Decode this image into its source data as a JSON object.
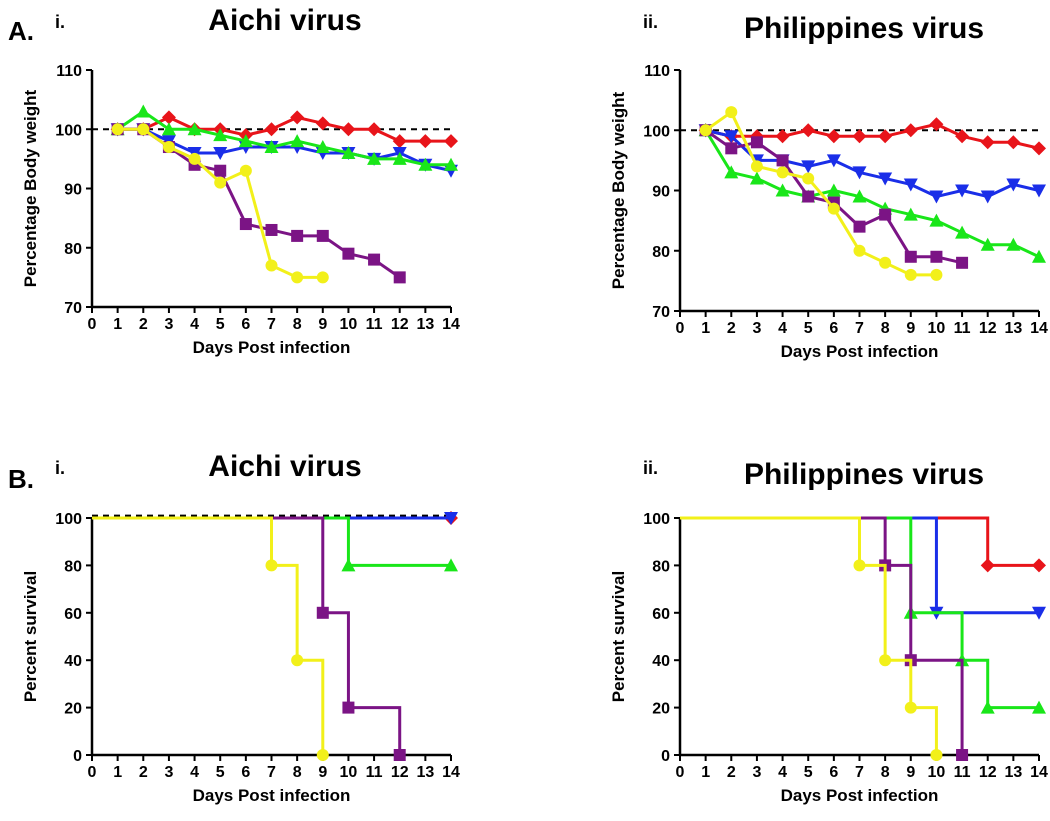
{
  "figure": {
    "panel_a_letter": "A.",
    "panel_b_letter": "B."
  },
  "chart_data": [
    {
      "type": "line",
      "sublabel": "i.",
      "title": "Aichi virus",
      "xlabel": "Days Post infection",
      "ylabel": "Percentage Body weight",
      "xlim": [
        0,
        14
      ],
      "ylim": [
        70,
        110
      ],
      "xticks": [
        0,
        1,
        2,
        3,
        4,
        5,
        6,
        7,
        8,
        9,
        10,
        11,
        12,
        13,
        14
      ],
      "yticks": [
        70,
        80,
        90,
        100,
        110
      ],
      "reference_line": 100,
      "series": [
        {
          "name": "red",
          "color": "#e8141a",
          "marker": "diamond",
          "x": [
            1,
            2,
            3,
            4,
            5,
            6,
            7,
            8,
            9,
            10,
            11,
            12,
            13,
            14
          ],
          "y": [
            100,
            100,
            102,
            100,
            100,
            99,
            100,
            102,
            101,
            100,
            100,
            98,
            98,
            98
          ]
        },
        {
          "name": "blue",
          "color": "#1a2ee8",
          "marker": "triangle-down",
          "x": [
            1,
            2,
            3,
            4,
            5,
            6,
            7,
            8,
            9,
            10,
            11,
            12,
            13,
            14
          ],
          "y": [
            100,
            100,
            98,
            96,
            96,
            97,
            97,
            97,
            96,
            96,
            95,
            96,
            94,
            93
          ]
        },
        {
          "name": "green",
          "color": "#19e619",
          "marker": "triangle-up",
          "x": [
            1,
            2,
            3,
            4,
            5,
            6,
            7,
            8,
            9,
            10,
            11,
            12,
            13,
            14
          ],
          "y": [
            100,
            103,
            100,
            100,
            99,
            98,
            97,
            98,
            97,
            96,
            95,
            95,
            94,
            94
          ]
        },
        {
          "name": "purple",
          "color": "#7b1485",
          "marker": "square",
          "x": [
            1,
            2,
            3,
            4,
            5,
            6,
            7,
            8,
            9,
            10,
            11,
            12
          ],
          "y": [
            100,
            100,
            97,
            94,
            93,
            84,
            83,
            82,
            82,
            79,
            78,
            75
          ]
        },
        {
          "name": "yellow",
          "color": "#f2f01a",
          "marker": "circle",
          "x": [
            1,
            2,
            3,
            4,
            5,
            6,
            7,
            8,
            9
          ],
          "y": [
            100,
            100,
            97,
            95,
            91,
            93,
            77,
            75,
            75
          ]
        }
      ]
    },
    {
      "type": "line",
      "sublabel": "ii.",
      "title": "Philippines virus",
      "xlabel": "Days Post infection",
      "ylabel": "Percentage Body weight",
      "xlim": [
        0,
        14
      ],
      "ylim": [
        70,
        110
      ],
      "xticks": [
        0,
        1,
        2,
        3,
        4,
        5,
        6,
        7,
        8,
        9,
        10,
        11,
        12,
        13,
        14
      ],
      "yticks": [
        70,
        80,
        90,
        100,
        110
      ],
      "reference_line": 100,
      "series": [
        {
          "name": "red",
          "color": "#e8141a",
          "marker": "diamond",
          "x": [
            1,
            2,
            3,
            4,
            5,
            6,
            7,
            8,
            9,
            10,
            11,
            12,
            13,
            14
          ],
          "y": [
            100,
            99,
            99,
            99,
            100,
            99,
            99,
            99,
            100,
            101,
            99,
            98,
            98,
            97
          ]
        },
        {
          "name": "blue",
          "color": "#1a2ee8",
          "marker": "triangle-down",
          "x": [
            1,
            2,
            3,
            4,
            5,
            6,
            7,
            8,
            9,
            10,
            11,
            12,
            13,
            14
          ],
          "y": [
            100,
            99,
            95,
            95,
            94,
            95,
            93,
            92,
            91,
            89,
            90,
            89,
            91,
            90
          ]
        },
        {
          "name": "green",
          "color": "#19e619",
          "marker": "triangle-up",
          "x": [
            1,
            2,
            3,
            4,
            5,
            6,
            7,
            8,
            9,
            10,
            11,
            12,
            13,
            14
          ],
          "y": [
            100,
            93,
            92,
            90,
            89,
            90,
            89,
            87,
            86,
            85,
            83,
            81,
            81,
            79
          ]
        },
        {
          "name": "purple",
          "color": "#7b1485",
          "marker": "square",
          "x": [
            1,
            2,
            3,
            4,
            5,
            6,
            7,
            8,
            9,
            10,
            11
          ],
          "y": [
            100,
            97,
            98,
            95,
            89,
            88,
            84,
            86,
            79,
            79,
            78
          ]
        },
        {
          "name": "yellow",
          "color": "#f2f01a",
          "marker": "circle",
          "x": [
            1,
            2,
            3,
            4,
            5,
            6,
            7,
            8,
            9,
            10
          ],
          "y": [
            100,
            103,
            94,
            93,
            92,
            87,
            80,
            78,
            76,
            76
          ]
        }
      ]
    },
    {
      "type": "step",
      "sublabel": "i.",
      "title": "Aichi virus",
      "xlabel": "Days Post infection",
      "ylabel": "Percent survival",
      "xlim": [
        0,
        14
      ],
      "ylim": [
        0,
        100
      ],
      "xticks": [
        0,
        1,
        2,
        3,
        4,
        5,
        6,
        7,
        8,
        9,
        10,
        11,
        12,
        13,
        14
      ],
      "yticks": [
        0,
        20,
        40,
        60,
        80,
        100
      ],
      "reference_line": 101,
      "series": [
        {
          "name": "red",
          "color": "#e8141a",
          "marker": "diamond",
          "x": [
            0,
            14
          ],
          "y": [
            100,
            100
          ],
          "markers_at": [
            [
              14,
              100
            ]
          ]
        },
        {
          "name": "blue",
          "color": "#1a2ee8",
          "marker": "triangle-down",
          "x": [
            0,
            14
          ],
          "y": [
            100,
            100
          ],
          "markers_at": [
            [
              14,
              100
            ]
          ]
        },
        {
          "name": "green",
          "color": "#19e619",
          "marker": "triangle-up",
          "x": [
            0,
            10,
            14
          ],
          "y": [
            100,
            80,
            80
          ],
          "markers_at": [
            [
              10,
              80
            ],
            [
              14,
              80
            ]
          ]
        },
        {
          "name": "purple",
          "color": "#7b1485",
          "marker": "square",
          "x": [
            0,
            9,
            10,
            12
          ],
          "y": [
            100,
            60,
            20,
            0
          ],
          "markers_at": [
            [
              9,
              60
            ],
            [
              10,
              20
            ],
            [
              12,
              0
            ]
          ]
        },
        {
          "name": "yellow",
          "color": "#f2f01a",
          "marker": "circle",
          "x": [
            0,
            7,
            8,
            9
          ],
          "y": [
            100,
            80,
            40,
            0
          ],
          "markers_at": [
            [
              7,
              80
            ],
            [
              8,
              40
            ],
            [
              9,
              0
            ]
          ]
        }
      ]
    },
    {
      "type": "step",
      "sublabel": "ii.",
      "title": "Philippines virus",
      "xlabel": "Days Post infection",
      "ylabel": "Percent survival",
      "xlim": [
        0,
        14
      ],
      "ylim": [
        0,
        100
      ],
      "xticks": [
        0,
        1,
        2,
        3,
        4,
        5,
        6,
        7,
        8,
        9,
        10,
        11,
        12,
        13,
        14
      ],
      "yticks": [
        0,
        20,
        40,
        60,
        80,
        100
      ],
      "reference_line": null,
      "series": [
        {
          "name": "red",
          "color": "#e8141a",
          "marker": "diamond",
          "x": [
            0,
            12,
            14
          ],
          "y": [
            100,
            80,
            80
          ],
          "markers_at": [
            [
              12,
              80
            ],
            [
              14,
              80
            ]
          ]
        },
        {
          "name": "blue",
          "color": "#1a2ee8",
          "marker": "triangle-down",
          "x": [
            0,
            10,
            14
          ],
          "y": [
            100,
            60,
            60
          ],
          "markers_at": [
            [
              10,
              60
            ],
            [
              14,
              60
            ]
          ]
        },
        {
          "name": "green",
          "color": "#19e619",
          "marker": "triangle-up",
          "x": [
            0,
            9,
            11,
            12,
            14
          ],
          "y": [
            100,
            60,
            40,
            20,
            20
          ],
          "markers_at": [
            [
              9,
              60
            ],
            [
              11,
              40
            ],
            [
              12,
              20
            ],
            [
              14,
              20
            ]
          ]
        },
        {
          "name": "purple",
          "color": "#7b1485",
          "marker": "square",
          "x": [
            0,
            8,
            9,
            11
          ],
          "y": [
            100,
            80,
            40,
            0
          ],
          "markers_at": [
            [
              8,
              80
            ],
            [
              9,
              40
            ],
            [
              11,
              0
            ]
          ]
        },
        {
          "name": "yellow",
          "color": "#f2f01a",
          "marker": "circle",
          "x": [
            0,
            7,
            8,
            9,
            10
          ],
          "y": [
            100,
            80,
            40,
            20,
            0
          ],
          "markers_at": [
            [
              7,
              80
            ],
            [
              8,
              40
            ],
            [
              9,
              20
            ],
            [
              10,
              0
            ]
          ]
        }
      ]
    }
  ]
}
